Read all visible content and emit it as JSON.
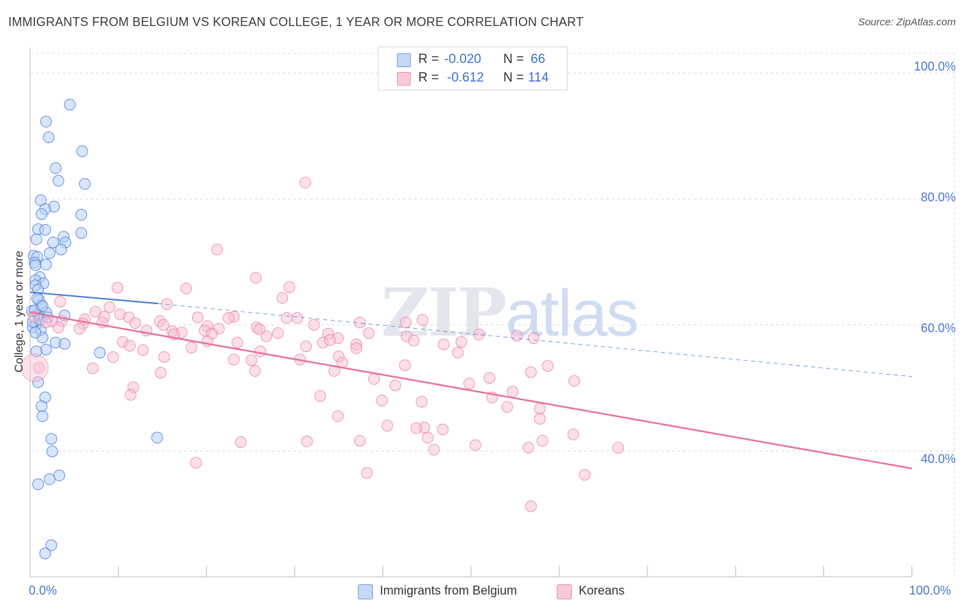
{
  "title": "IMMIGRANTS FROM BELGIUM VS KOREAN COLLEGE, 1 YEAR OR MORE CORRELATION CHART",
  "source": "Source: ZipAtlas.com",
  "watermark": {
    "zip": "ZIP",
    "atlas": "atlas"
  },
  "colors": {
    "blue": "#4a7fd6",
    "pink": "#e8709a",
    "blue_fill": "#b8d0f5",
    "pink_fill": "#f7bfd3",
    "grid": "#dcdcdc",
    "axis_text": "#4a78c8"
  },
  "stats": {
    "rows": [
      {
        "r_label": "R =",
        "r_value": "-0.020",
        "n_label": "N =",
        "n_value": "66"
      },
      {
        "r_label": "R =",
        "r_value": "-0.612",
        "n_label": "N =",
        "n_value": "114"
      }
    ]
  },
  "legend": {
    "blue_label": "Immigrants from Belgium",
    "pink_label": "Koreans"
  },
  "chart_data": {
    "type": "scatter",
    "title": "IMMIGRANTS FROM BELGIUM VS KOREAN COLLEGE, 1 YEAR OR MORE CORRELATION CHART",
    "xlabel": "",
    "ylabel": "College, 1 year or more",
    "xlim": [
      0,
      100
    ],
    "ylim": [
      20,
      104
    ],
    "x_tick_labels": [
      "0.0%",
      "100.0%"
    ],
    "y_ticks": [
      40,
      60,
      80,
      100
    ],
    "y_tick_labels": [
      "40.0%",
      "60.0%",
      "80.0%",
      "100.0%"
    ],
    "grid": true,
    "series": [
      {
        "name": "Immigrants from Belgium",
        "r": -0.02,
        "n": 66,
        "trend": {
          "x0": 0,
          "y0": 65.2,
          "x1": 14.5,
          "y1": 63.4,
          "dashed_to_x": 100,
          "dashed_to_y": 51.8
        },
        "points": [
          [
            4.5,
            95
          ],
          [
            1.8,
            92.3
          ],
          [
            2.1,
            89.8
          ],
          [
            5.9,
            87.6
          ],
          [
            2.9,
            84.9
          ],
          [
            3.2,
            82.9
          ],
          [
            6.2,
            82.4
          ],
          [
            1.2,
            79.8
          ],
          [
            2.7,
            78.8
          ],
          [
            1.7,
            78.4
          ],
          [
            1.3,
            77.6
          ],
          [
            5.8,
            77.5
          ],
          [
            0.9,
            75.2
          ],
          [
            1.7,
            75.1
          ],
          [
            5.8,
            74.6
          ],
          [
            3.8,
            74.0
          ],
          [
            0.7,
            73.6
          ],
          [
            4.0,
            73.1
          ],
          [
            2.6,
            73.1
          ],
          [
            3.5,
            72.0
          ],
          [
            2.2,
            71.4
          ],
          [
            0.4,
            71.0
          ],
          [
            0.8,
            70.8
          ],
          [
            0.5,
            69.9
          ],
          [
            0.6,
            69.5
          ],
          [
            1.8,
            69.6
          ],
          [
            1.1,
            67.6
          ],
          [
            0.6,
            67.1
          ],
          [
            1.5,
            66.6
          ],
          [
            0.6,
            66.3
          ],
          [
            0.9,
            65.6
          ],
          [
            1.0,
            64.0
          ],
          [
            1.2,
            63.1
          ],
          [
            0.2,
            62.2
          ],
          [
            1.8,
            62.0
          ],
          [
            0.9,
            61.6
          ],
          [
            3.9,
            61.5
          ],
          [
            1.0,
            61.1
          ],
          [
            0.7,
            60.1
          ],
          [
            0.3,
            59.6
          ],
          [
            1.2,
            59.2
          ],
          [
            1.4,
            58.0
          ],
          [
            2.9,
            57.2
          ],
          [
            3.9,
            57.0
          ],
          [
            1.8,
            56.1
          ],
          [
            0.7,
            55.8
          ],
          [
            7.9,
            55.6
          ],
          [
            0.9,
            50.9
          ],
          [
            1.7,
            48.5
          ],
          [
            1.3,
            47.1
          ],
          [
            1.4,
            45.5
          ],
          [
            2.4,
            41.9
          ],
          [
            2.5,
            39.9
          ],
          [
            14.4,
            42.1
          ],
          [
            3.3,
            36.1
          ],
          [
            2.2,
            35.5
          ],
          [
            0.9,
            34.7
          ],
          [
            2.4,
            25.0
          ],
          [
            1.7,
            23.7
          ],
          [
            0.3,
            60.5
          ],
          [
            0.5,
            62.3
          ],
          [
            1.1,
            60.8
          ],
          [
            0.8,
            64.2
          ],
          [
            1.4,
            63.0
          ],
          [
            0.6,
            58.8
          ],
          [
            2.0,
            61.2
          ]
        ]
      },
      {
        "name": "Koreans",
        "r": -0.612,
        "n": 114,
        "trend": {
          "x0": 0,
          "y0": 62.0,
          "x1": 100,
          "y1": 37.2
        },
        "points": [
          [
            31.2,
            82.6
          ],
          [
            21.2,
            72.0
          ],
          [
            25.6,
            67.5
          ],
          [
            9.9,
            65.9
          ],
          [
            17.7,
            65.8
          ],
          [
            29.4,
            66.0
          ],
          [
            28.6,
            64.3
          ],
          [
            3.4,
            63.7
          ],
          [
            15.5,
            63.3
          ],
          [
            9.0,
            62.8
          ],
          [
            7.4,
            62.1
          ],
          [
            10.2,
            61.7
          ],
          [
            0.4,
            61.3
          ],
          [
            8.4,
            61.3
          ],
          [
            11.2,
            61.2
          ],
          [
            19.0,
            61.2
          ],
          [
            23.1,
            61.3
          ],
          [
            29.1,
            61.1
          ],
          [
            30.3,
            61.1
          ],
          [
            22.5,
            61.1
          ],
          [
            6.2,
            60.9
          ],
          [
            3.6,
            60.6
          ],
          [
            2.5,
            60.6
          ],
          [
            1.8,
            60.4
          ],
          [
            8.2,
            60.4
          ],
          [
            14.7,
            60.6
          ],
          [
            6.0,
            60.2
          ],
          [
            11.9,
            60.3
          ],
          [
            15.1,
            60.0
          ],
          [
            20.1,
            59.8
          ],
          [
            25.7,
            59.6
          ],
          [
            32.2,
            60.0
          ],
          [
            37.4,
            60.4
          ],
          [
            42.6,
            60.4
          ],
          [
            44.5,
            60.8
          ],
          [
            3.2,
            59.6
          ],
          [
            5.6,
            59.4
          ],
          [
            13.2,
            59.1
          ],
          [
            16.1,
            59.0
          ],
          [
            17.2,
            58.8
          ],
          [
            19.8,
            59.1
          ],
          [
            21.4,
            59.4
          ],
          [
            26.0,
            59.3
          ],
          [
            28.1,
            58.7
          ],
          [
            33.8,
            58.6
          ],
          [
            38.4,
            58.7
          ],
          [
            50.9,
            58.5
          ],
          [
            20.6,
            58.6
          ],
          [
            16.3,
            58.5
          ],
          [
            26.8,
            58.2
          ],
          [
            34.9,
            57.9
          ],
          [
            42.7,
            58.2
          ],
          [
            55.2,
            58.3
          ],
          [
            57.1,
            57.9
          ],
          [
            10.5,
            57.3
          ],
          [
            20.1,
            57.4
          ],
          [
            23.5,
            57.2
          ],
          [
            33.2,
            57.2
          ],
          [
            34.0,
            57.6
          ],
          [
            43.5,
            57.5
          ],
          [
            48.9,
            57.3
          ],
          [
            11.3,
            56.7
          ],
          [
            18.3,
            56.4
          ],
          [
            31.3,
            56.6
          ],
          [
            37.0,
            56.9
          ],
          [
            46.9,
            56.9
          ],
          [
            12.8,
            56.0
          ],
          [
            48.5,
            55.6
          ],
          [
            37.0,
            56.3
          ],
          [
            26.1,
            55.8
          ],
          [
            35.0,
            55.0
          ],
          [
            9.4,
            54.9
          ],
          [
            15.2,
            54.9
          ],
          [
            23.1,
            54.5
          ],
          [
            30.6,
            54.5
          ],
          [
            25.1,
            54.4
          ],
          [
            35.4,
            54.0
          ],
          [
            42.5,
            53.6
          ],
          [
            58.7,
            53.5
          ],
          [
            1.0,
            53.2
          ],
          [
            7.1,
            53.1
          ],
          [
            25.5,
            52.7
          ],
          [
            34.5,
            52.7
          ],
          [
            56.8,
            52.5
          ],
          [
            14.8,
            52.4
          ],
          [
            52.1,
            51.6
          ],
          [
            39.0,
            51.4
          ],
          [
            61.7,
            51.1
          ],
          [
            41.4,
            50.4
          ],
          [
            49.8,
            50.7
          ],
          [
            54.7,
            49.4
          ],
          [
            11.7,
            50.1
          ],
          [
            11.4,
            48.9
          ],
          [
            32.9,
            48.7
          ],
          [
            52.4,
            48.5
          ],
          [
            39.9,
            48.0
          ],
          [
            44.4,
            47.8
          ],
          [
            54.1,
            47.0
          ],
          [
            57.8,
            46.7
          ],
          [
            34.9,
            45.5
          ],
          [
            57.8,
            45.1
          ],
          [
            40.5,
            44.0
          ],
          [
            44.7,
            43.7
          ],
          [
            43.8,
            43.6
          ],
          [
            46.8,
            43.4
          ],
          [
            61.6,
            42.6
          ],
          [
            45.1,
            42.1
          ],
          [
            23.9,
            41.4
          ],
          [
            18.8,
            38.1
          ],
          [
            31.4,
            41.5
          ],
          [
            37.4,
            41.6
          ],
          [
            58.1,
            41.6
          ],
          [
            50.5,
            40.9
          ],
          [
            56.5,
            40.5
          ],
          [
            45.8,
            40.2
          ],
          [
            66.7,
            40.5
          ],
          [
            38.2,
            36.5
          ],
          [
            62.9,
            36.2
          ],
          [
            56.8,
            31.2
          ]
        ]
      }
    ]
  }
}
